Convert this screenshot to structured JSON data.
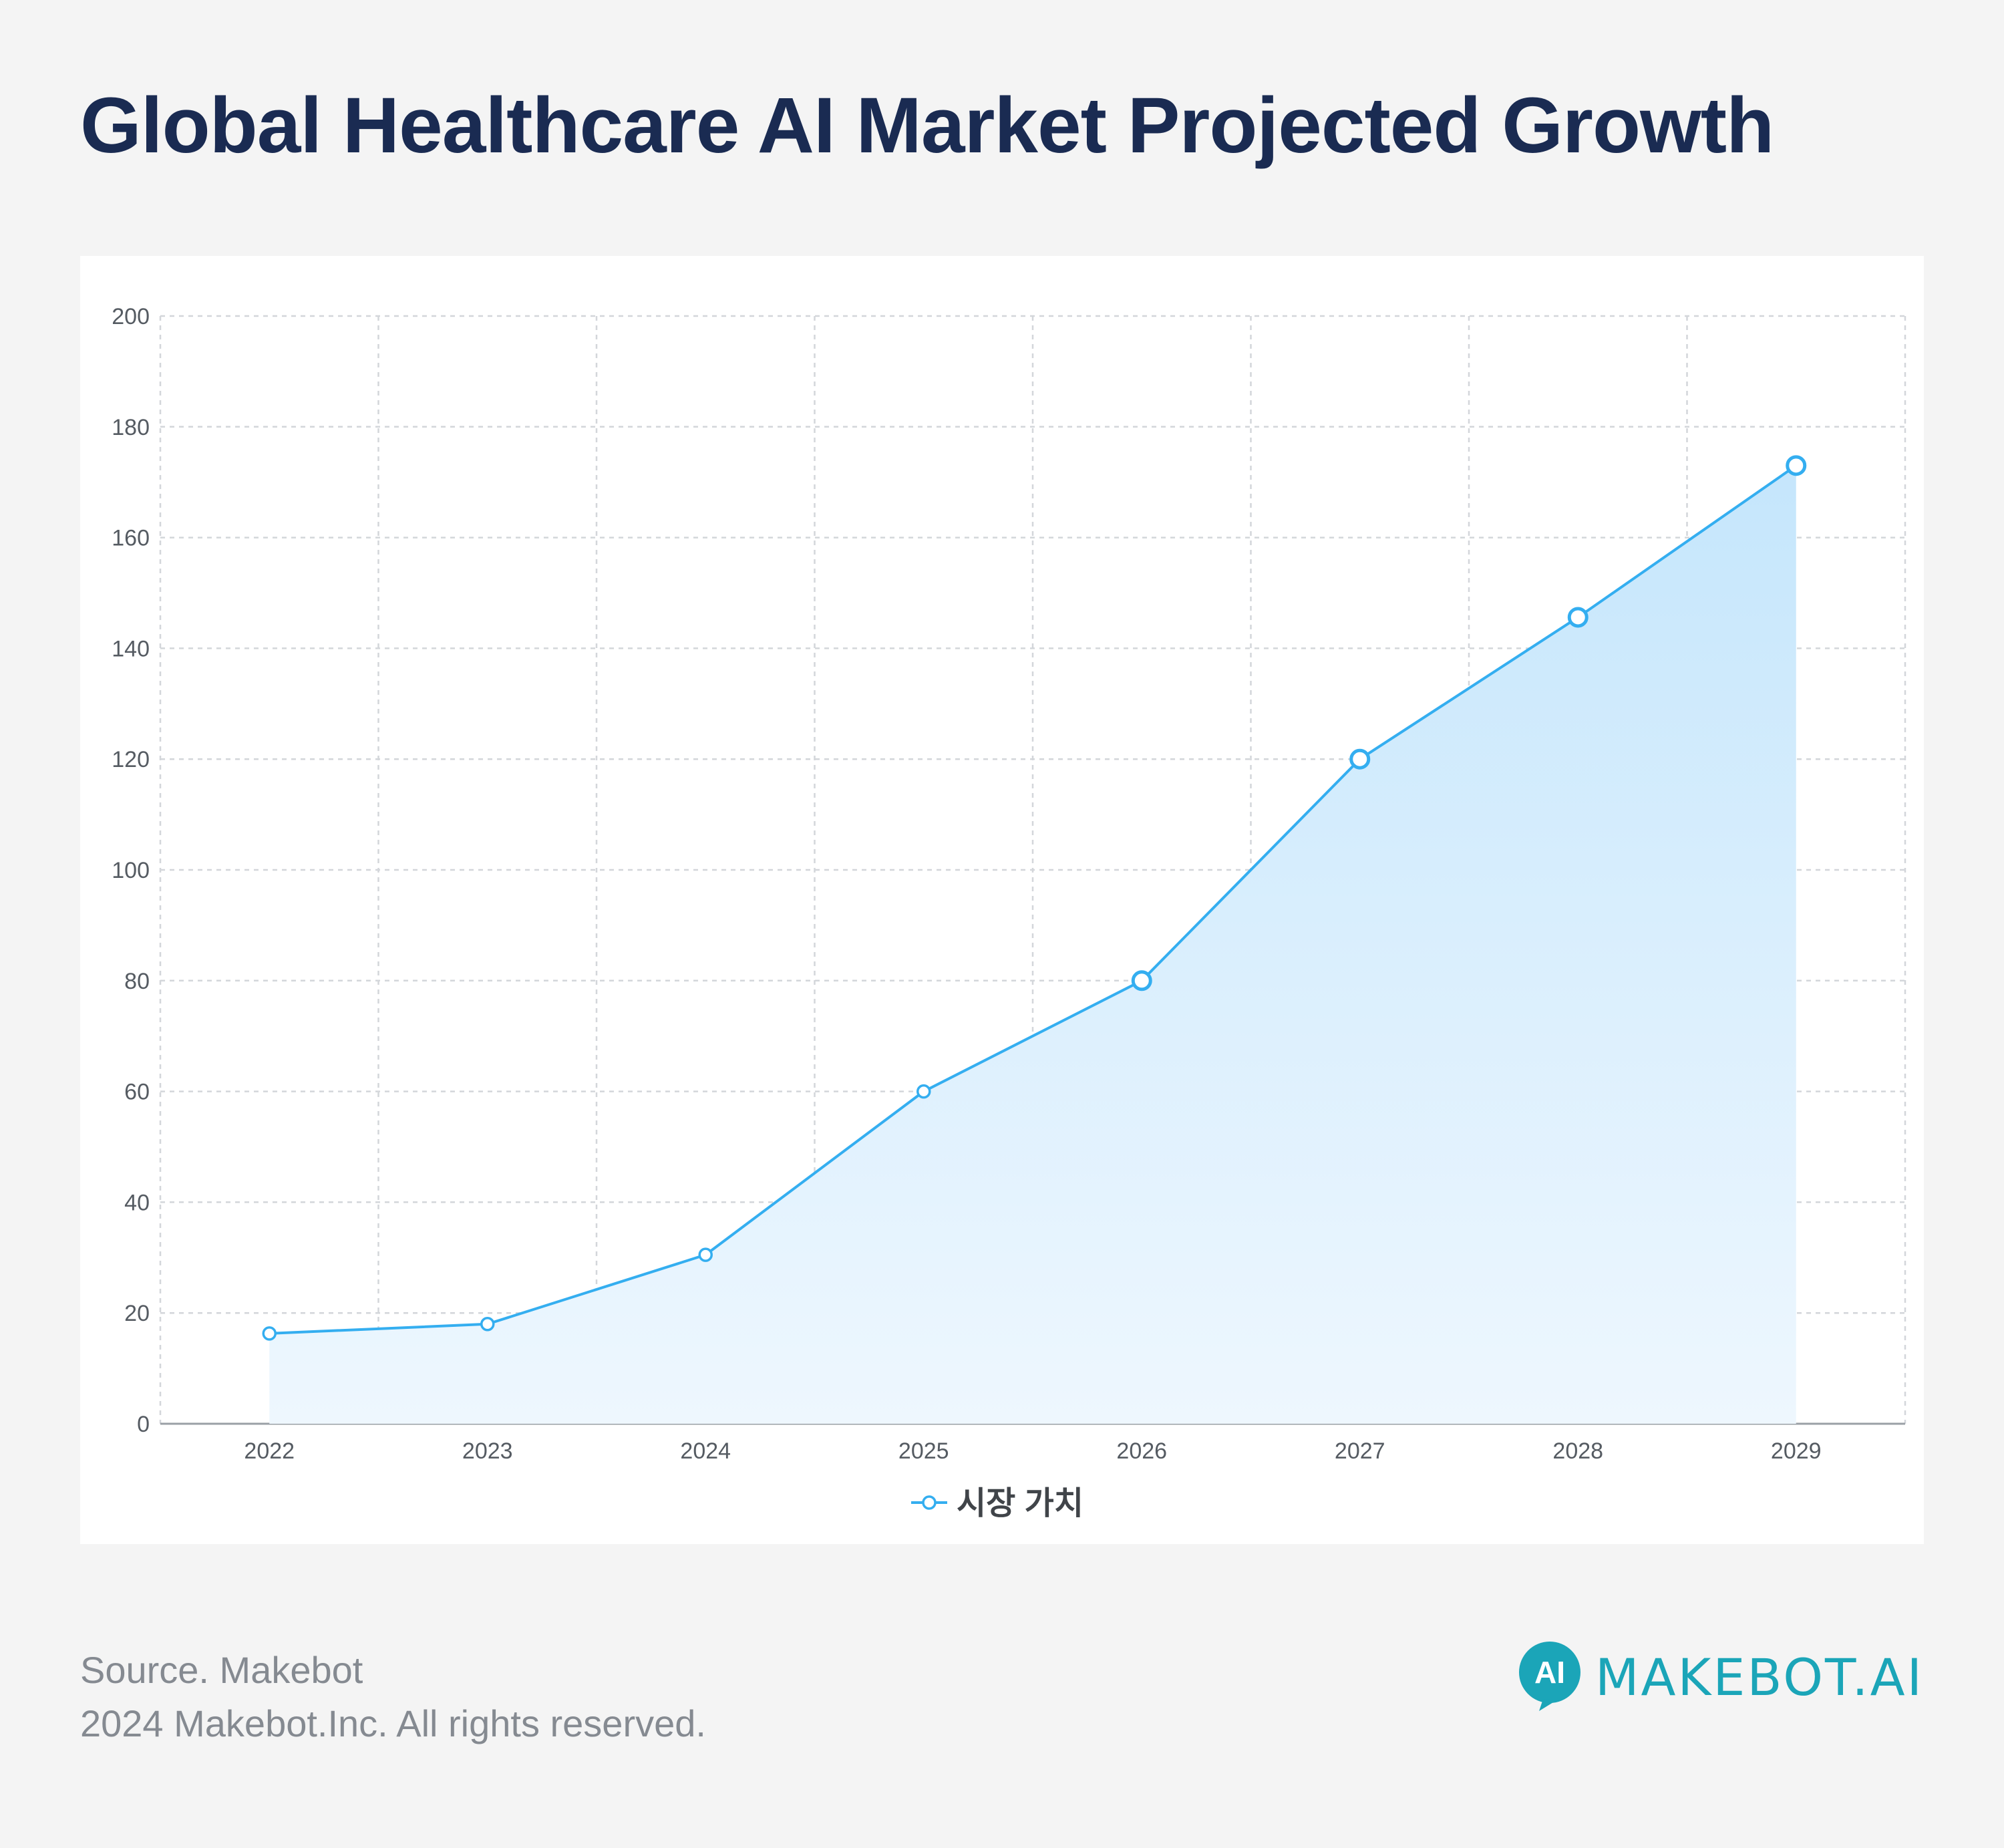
{
  "page": {
    "title": "Global Healthcare AI Market Projected Growth",
    "source": "Source. Makebot",
    "copyright": "2024 Makebot.Inc. All rights reserved.",
    "brand_logo_text": "AI",
    "brand_name": "MAKEBOT.AI"
  },
  "colors": {
    "title": "#1a2b52",
    "line": "#34aef0",
    "area_top": "#c5e6fc",
    "area_bottom": "#eef7fe",
    "brand": "#1ba5b8"
  },
  "chart_data": {
    "type": "area",
    "x": [
      "2022",
      "2023",
      "2024",
      "2025",
      "2026",
      "2027",
      "2028",
      "2029"
    ],
    "series": [
      {
        "name": "시장 가치",
        "values": [
          16.3,
          18,
          30.5,
          60,
          80,
          120,
          145.6,
          173
        ]
      }
    ],
    "ylim": [
      0,
      200
    ],
    "yticks": [
      "0",
      "20",
      "40",
      "60",
      "80",
      "100",
      "120",
      "140",
      "160",
      "180",
      "200"
    ],
    "grid": true,
    "legend": "bottom-center"
  }
}
